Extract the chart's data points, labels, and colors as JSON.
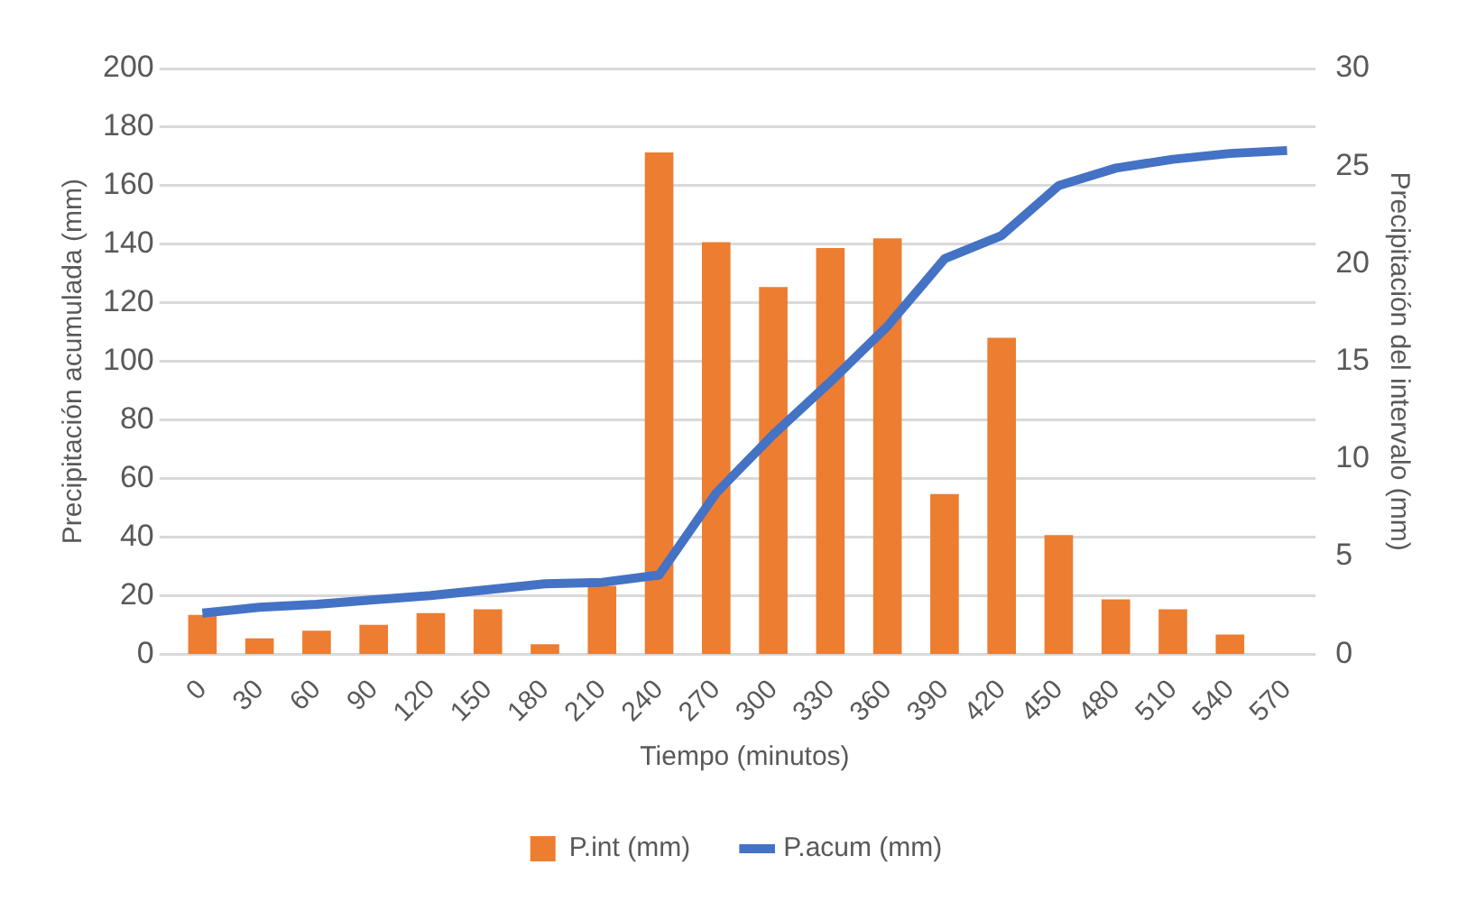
{
  "chart_data": {
    "type": "bar",
    "xlabel": "Tiempo (minutos)",
    "ylabel": "Precipitación acumulada (mm)",
    "y2label": "Precipitación del intervalo (mm)",
    "categories": [
      "0",
      "30",
      "60",
      "90",
      "120",
      "150",
      "180",
      "210",
      "240",
      "270",
      "300",
      "330",
      "360",
      "390",
      "420",
      "450",
      "480",
      "510",
      "540",
      "570"
    ],
    "series": [
      {
        "name": "P.int (mm)",
        "axis": "y2",
        "color": "#ed7d31",
        "values": [
          2.0,
          0.8,
          1.2,
          1.5,
          2.1,
          2.3,
          0.5,
          3.5,
          25.7,
          21.1,
          18.8,
          20.8,
          21.3,
          8.2,
          16.2,
          6.1,
          2.8,
          2.3,
          1.0,
          null
        ]
      },
      {
        "name": "P.acum (mm)",
        "type": "line",
        "color": "#4472c4",
        "values": [
          14,
          16,
          17,
          18.5,
          20,
          22,
          24,
          24.5,
          27,
          55,
          75,
          93,
          112,
          135,
          143,
          160,
          166,
          169,
          171,
          172
        ]
      }
    ],
    "ylim": [
      0,
      200
    ],
    "yticks": [
      0,
      20,
      40,
      60,
      80,
      100,
      120,
      140,
      160,
      180,
      200
    ],
    "y2lim": [
      0,
      30
    ],
    "y2ticks": [
      0,
      5,
      10,
      15,
      20,
      25,
      30
    ],
    "grid": "y",
    "legend": "bottom",
    "marker": "none",
    "line_style": "solid"
  }
}
